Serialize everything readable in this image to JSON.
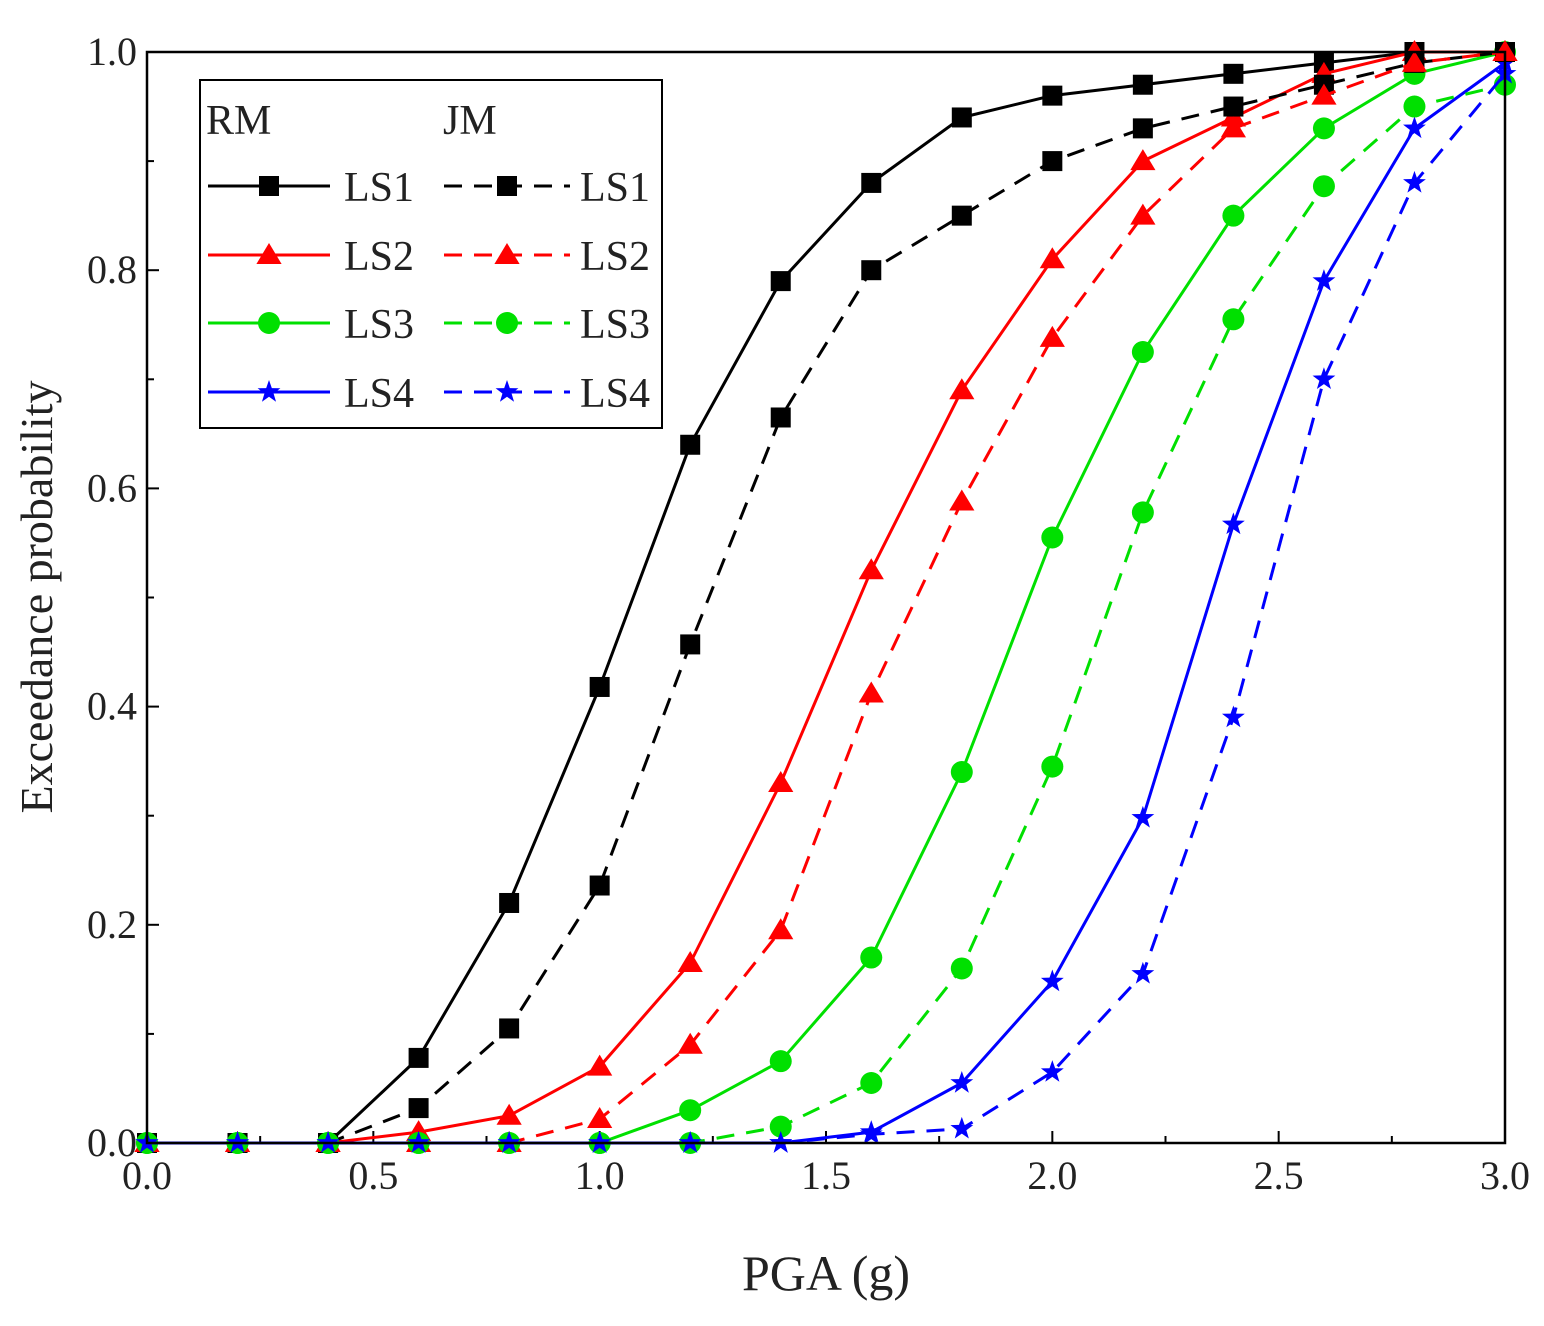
{
  "chart_data": {
    "type": "line",
    "title": "",
    "xlabel": "PGA (g)",
    "ylabel": "Exceedance probability",
    "xlim": [
      0,
      3
    ],
    "ylim": [
      0,
      1
    ],
    "xticks": [
      "0.0",
      "0.5",
      "1.0",
      "1.5",
      "2.0",
      "2.5",
      "3.0"
    ],
    "yticks": [
      "0.0",
      "0.2",
      "0.4",
      "0.6",
      "0.8",
      "1.0"
    ],
    "grid": false,
    "legend_position": "top-left",
    "legend_headers": [
      "RM",
      "JM"
    ],
    "x": [
      0.0,
      0.2,
      0.4,
      0.6,
      0.8,
      1.0,
      1.2,
      1.4,
      1.6,
      1.8,
      2.0,
      2.2,
      2.4,
      2.6,
      2.8,
      3.0
    ],
    "series": [
      {
        "name": "LS1",
        "group": "RM",
        "color": "#000000",
        "dash": "solid",
        "marker": "square",
        "values": [
          0,
          0,
          0,
          0.078,
          0.22,
          0.418,
          0.64,
          0.79,
          0.88,
          0.94,
          0.96,
          0.97,
          0.98,
          0.99,
          1.0,
          1.0
        ]
      },
      {
        "name": "LS2",
        "group": "RM",
        "color": "#ff0000",
        "dash": "solid",
        "marker": "triangle",
        "values": [
          0,
          0,
          0,
          0.01,
          0.025,
          0.07,
          0.165,
          0.33,
          0.525,
          0.69,
          0.81,
          0.9,
          0.94,
          0.98,
          1.0,
          1.0
        ]
      },
      {
        "name": "LS3",
        "group": "RM",
        "color": "#00e000",
        "dash": "solid",
        "marker": "circle",
        "values": [
          0,
          0,
          0,
          0,
          0,
          0,
          0.03,
          0.075,
          0.17,
          0.34,
          0.555,
          0.725,
          0.85,
          0.93,
          0.98,
          1.0
        ]
      },
      {
        "name": "LS4",
        "group": "RM",
        "color": "#0000ff",
        "dash": "solid",
        "marker": "star",
        "values": [
          0,
          0,
          0,
          0,
          0,
          0,
          0,
          0,
          0.01,
          0.055,
          0.148,
          0.298,
          0.567,
          0.79,
          0.93,
          0.99
        ]
      },
      {
        "name": "LS1",
        "group": "JM",
        "color": "#000000",
        "dash": "dashed",
        "marker": "square",
        "values": [
          0,
          0,
          0,
          0.032,
          0.105,
          0.236,
          0.457,
          0.665,
          0.8,
          0.85,
          0.9,
          0.93,
          0.95,
          0.97,
          0.99,
          1.0
        ]
      },
      {
        "name": "LS2",
        "group": "JM",
        "color": "#ff0000",
        "dash": "dashed",
        "marker": "triangle",
        "values": [
          0,
          0,
          0,
          0,
          0,
          0.022,
          0.09,
          0.195,
          0.412,
          0.588,
          0.738,
          0.85,
          0.93,
          0.96,
          0.99,
          1.0
        ]
      },
      {
        "name": "LS3",
        "group": "JM",
        "color": "#00e000",
        "dash": "dashed",
        "marker": "circle",
        "values": [
          0,
          0,
          0,
          0,
          0,
          0,
          0,
          0.015,
          0.055,
          0.16,
          0.345,
          0.578,
          0.755,
          0.877,
          0.95,
          0.97
        ]
      },
      {
        "name": "LS4",
        "group": "JM",
        "color": "#0000ff",
        "dash": "dashed",
        "marker": "star",
        "values": [
          0,
          0,
          0,
          0,
          0,
          0,
          0,
          0,
          0.008,
          0.013,
          0.065,
          0.155,
          0.39,
          0.7,
          0.88,
          0.98
        ]
      }
    ]
  }
}
